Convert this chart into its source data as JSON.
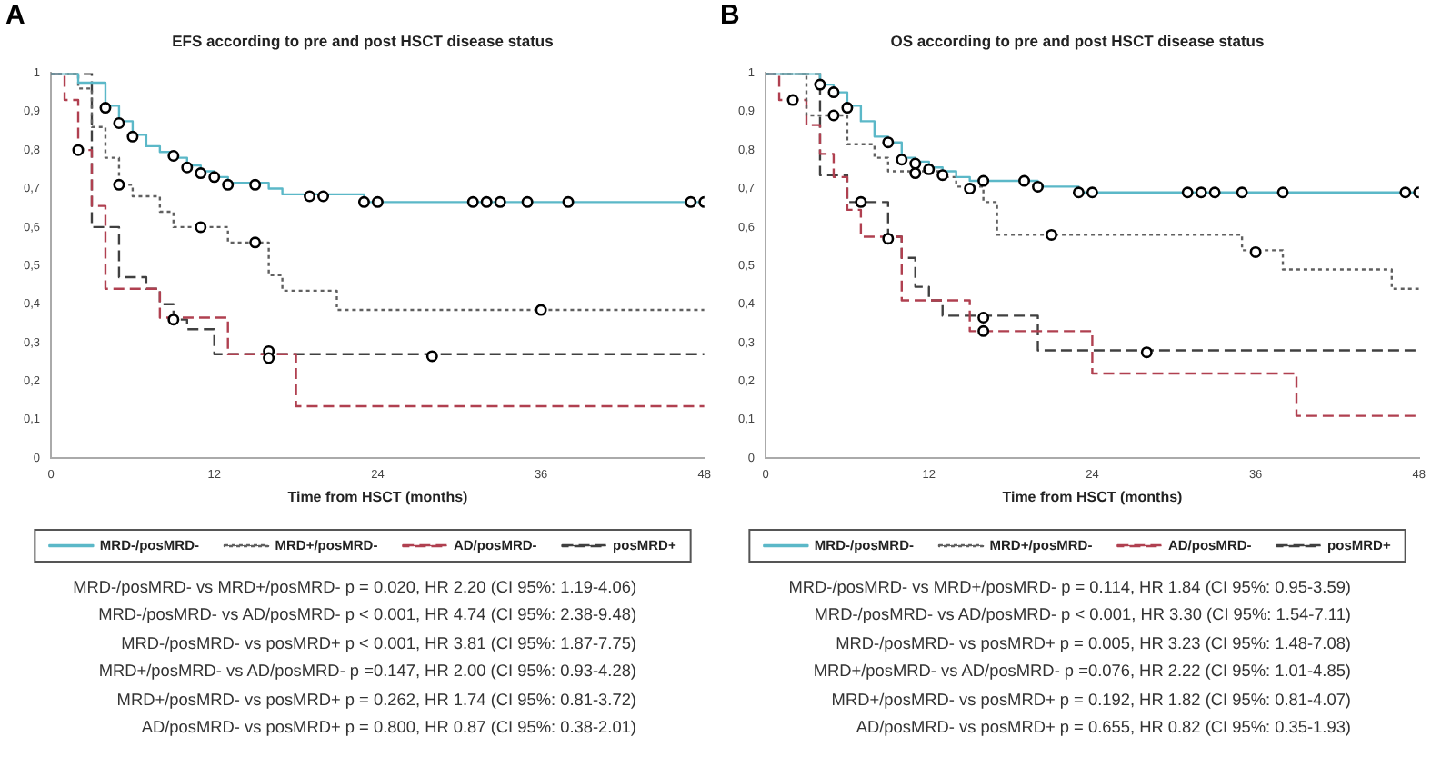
{
  "chart_data": [
    {
      "type": "step",
      "title": "EFS according to pre and post HSCT disease status",
      "xlabel": "Time from HSCT (months)",
      "legend": "bottom",
      "marker": "none",
      "grid": false,
      "xlim": [
        0,
        48
      ],
      "xticks": [
        0,
        12,
        24,
        36,
        48
      ],
      "ylim": [
        0,
        1
      ],
      "yticks": [
        {
          "value": 0,
          "label": "0"
        },
        {
          "value": 0.1,
          "label": "0,1"
        },
        {
          "value": 0.2,
          "label": "0,2"
        },
        {
          "value": 0.3,
          "label": "0,3"
        },
        {
          "value": 0.4,
          "label": "0,4"
        },
        {
          "value": 0.5,
          "label": "0,5"
        },
        {
          "value": 0.6,
          "label": "0,6"
        },
        {
          "value": 0.7,
          "label": "0,7"
        },
        {
          "value": 0.8,
          "label": "0,8"
        },
        {
          "value": 0.9,
          "label": "0,9"
        },
        {
          "value": 1,
          "label": "1"
        }
      ],
      "series": [
        {
          "name": "MRD-/posMRD-",
          "color": "#5bb8c8",
          "line_style": "solid",
          "x": [
            0,
            2,
            4,
            5,
            6,
            7,
            8,
            9,
            10,
            11,
            12,
            13,
            16,
            17,
            23,
            48
          ],
          "values": [
            1,
            0.975,
            0.915,
            0.875,
            0.84,
            0.81,
            0.795,
            0.78,
            0.76,
            0.745,
            0.73,
            0.715,
            0.7,
            0.685,
            0.665,
            0.665
          ]
        },
        {
          "name": "MRD+/posMRD-",
          "color": "#606060",
          "line_style": "dotted",
          "x": [
            0,
            2,
            3,
            4,
            5,
            6,
            8,
            9,
            13,
            16,
            17,
            21,
            48
          ],
          "values": [
            1,
            0.96,
            0.86,
            0.78,
            0.71,
            0.68,
            0.64,
            0.6,
            0.56,
            0.475,
            0.435,
            0.385,
            0.385
          ]
        },
        {
          "name": "AD/posMRD-",
          "color": "#b04050",
          "line_style": "dashed",
          "x": [
            0,
            1,
            2,
            3,
            4,
            8,
            13,
            18,
            48
          ],
          "values": [
            1,
            0.93,
            0.8,
            0.655,
            0.44,
            0.365,
            0.27,
            0.135,
            0.135
          ]
        },
        {
          "name": "posMRD+",
          "color": "#404040",
          "line_style": "dashed",
          "x": [
            0,
            3,
            5,
            7,
            8,
            9,
            10,
            12,
            48
          ],
          "values": [
            1,
            0.6,
            0.47,
            0.44,
            0.4,
            0.36,
            0.335,
            0.27,
            0.27
          ]
        },
        {
          "type": "scatter",
          "marker": "circle",
          "color": "#000000",
          "x": [
            4,
            5,
            6,
            9,
            10,
            11,
            12,
            13,
            15,
            19,
            20,
            23,
            24,
            31,
            32,
            33,
            35,
            38,
            47,
            48,
            5,
            11,
            15,
            36,
            2,
            9,
            16,
            16,
            28
          ],
          "values": [
            0.91,
            0.87,
            0.835,
            0.785,
            0.755,
            0.74,
            0.73,
            0.71,
            0.71,
            0.68,
            0.68,
            0.665,
            0.665,
            0.665,
            0.665,
            0.665,
            0.665,
            0.665,
            0.665,
            0.665,
            0.71,
            0.6,
            0.56,
            0.385,
            0.8,
            0.36,
            0.278,
            0.26,
            0.265
          ]
        }
      ],
      "annotations": [
        "A",
        "MRD-/posMRD- vs MRD+/posMRD- p = 0.020, HR 2.20 (CI 95%: 1.19-4.06)",
        "MRD-/posMRD- vs AD/posMRD- p < 0.001, HR 4.74 (CI 95%: 2.38-9.48)",
        "MRD-/posMRD- vs posMRD+ p < 0.001, HR 3.81 (CI 95%: 1.87-7.75)",
        "MRD+/posMRD- vs AD/posMRD- p =0.147, HR 2.00 (CI 95%: 0.93-4.28)",
        "MRD+/posMRD- vs posMRD+  p = 0.262, HR 1.74 (CI 95%: 0.81-3.72)",
        "AD/posMRD- vs posMRD+ p = 0.800, HR 0.87 (CI 95%: 0.38-2.01)"
      ]
    },
    {
      "type": "step",
      "title": "OS according to pre and post HSCT disease status",
      "xlabel": "Time from HSCT (months)",
      "legend": "bottom",
      "marker": "none",
      "grid": false,
      "xlim": [
        0,
        48
      ],
      "xticks": [
        0,
        12,
        24,
        36,
        48
      ],
      "ylim": [
        0,
        1
      ],
      "yticks": [
        {
          "value": 0,
          "label": "0"
        },
        {
          "value": 0.1,
          "label": "0,1"
        },
        {
          "value": 0.2,
          "label": "0,2"
        },
        {
          "value": 0.3,
          "label": "0,3"
        },
        {
          "value": 0.4,
          "label": "0,4"
        },
        {
          "value": 0.5,
          "label": "0,5"
        },
        {
          "value": 0.6,
          "label": "0,6"
        },
        {
          "value": 0.7,
          "label": "0,7"
        },
        {
          "value": 0.8,
          "label": "0,8"
        },
        {
          "value": 0.9,
          "label": "0,9"
        },
        {
          "value": 1,
          "label": "1"
        }
      ],
      "series": [
        {
          "name": "MRD-/posMRD-",
          "color": "#5bb8c8",
          "line_style": "solid",
          "x": [
            0,
            4,
            5,
            6,
            7,
            8,
            9,
            10,
            11,
            12,
            13,
            14,
            15,
            20,
            23,
            48
          ],
          "values": [
            1,
            0.97,
            0.95,
            0.915,
            0.875,
            0.835,
            0.82,
            0.78,
            0.77,
            0.755,
            0.745,
            0.73,
            0.72,
            0.705,
            0.69,
            0.69
          ]
        },
        {
          "name": "MRD+/posMRD-",
          "color": "#606060",
          "line_style": "dotted",
          "x": [
            0,
            3,
            6,
            8,
            9,
            13,
            14,
            16,
            17,
            35,
            38,
            46,
            48
          ],
          "values": [
            1,
            0.89,
            0.815,
            0.78,
            0.745,
            0.73,
            0.705,
            0.665,
            0.58,
            0.54,
            0.49,
            0.44,
            0.44
          ]
        },
        {
          "name": "AD/posMRD-",
          "color": "#b04050",
          "line_style": "dashed",
          "x": [
            0,
            1,
            3,
            4,
            5,
            6,
            7,
            10,
            15,
            24,
            39,
            48
          ],
          "values": [
            1,
            0.93,
            0.865,
            0.79,
            0.73,
            0.645,
            0.575,
            0.41,
            0.33,
            0.22,
            0.11,
            0.11
          ]
        },
        {
          "name": "posMRD+",
          "color": "#404040",
          "line_style": "dashed",
          "x": [
            0,
            4,
            6,
            9,
            10,
            11,
            12,
            13,
            20,
            48
          ],
          "values": [
            1,
            0.735,
            0.665,
            0.575,
            0.52,
            0.445,
            0.41,
            0.37,
            0.28,
            0.28
          ]
        },
        {
          "type": "scatter",
          "marker": "circle",
          "color": "#000000",
          "x": [
            4,
            5,
            6,
            9,
            10,
            11,
            12,
            13,
            16,
            19,
            20,
            23,
            24,
            31,
            32,
            33,
            35,
            38,
            47,
            48,
            5,
            11,
            15,
            21,
            36,
            2,
            16,
            7,
            9,
            16,
            28
          ],
          "values": [
            0.97,
            0.95,
            0.91,
            0.82,
            0.775,
            0.765,
            0.75,
            0.735,
            0.72,
            0.72,
            0.705,
            0.69,
            0.69,
            0.69,
            0.69,
            0.69,
            0.69,
            0.69,
            0.69,
            0.69,
            0.89,
            0.74,
            0.7,
            0.58,
            0.535,
            0.93,
            0.33,
            0.665,
            0.57,
            0.365,
            0.275
          ]
        }
      ],
      "annotations": [
        "B",
        "MRD-/posMRD- vs MRD+/posMRD- p = 0.114, HR 1.84 (CI 95%: 0.95-3.59)",
        "MRD-/posMRD- vs AD/posMRD- p < 0.001, HR 3.30 (CI 95%: 1.54-7.11)",
        "MRD-/posMRD- vs posMRD+ p = 0.005, HR 3.23 (CI 95%: 1.48-7.08)",
        "MRD+/posMRD- vs AD/posMRD- p =0.076, HR 2.22 (CI 95%: 1.01-4.85)",
        "MRD+/posMRD- vs posMRD+  p = 0.192, HR 1.82 (CI 95%: 0.81-4.07)",
        "AD/posMRD- vs posMRD+ p = 0.655, HR 0.82 (CI 95%: 0.35-1.93)"
      ]
    }
  ]
}
